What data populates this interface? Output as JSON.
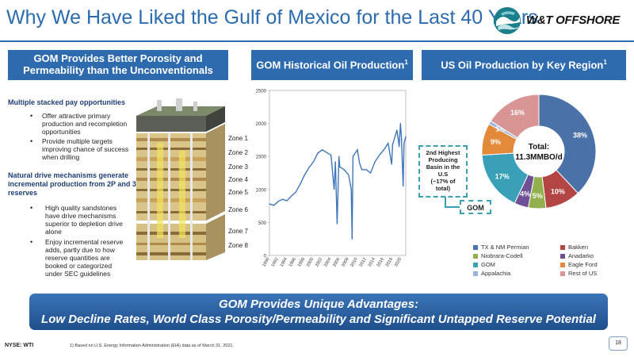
{
  "title": "Why We Have Liked the Gulf of Mexico for the Last 40 Years",
  "logo": {
    "text": "W&T OFFSHORE"
  },
  "left_panel": {
    "header": "GOM Provides Better Porosity and Permeability than the Unconventionals",
    "sections": [
      {
        "heading": "Multiple stacked pay opportunities",
        "bullets": [
          "Offer attractive primary production and recompletion opportunities",
          "Provide multiple targets improving chance of success when drilling"
        ]
      },
      {
        "heading": "Natural drive mechanisms generate incremental production from 2P and 3P reserves",
        "bullets": [
          "High quality sandstones have drive mechanisms superior to depletion drive alone",
          "Enjoy incremental reserve adds, partly due to how reserve quantities are booked or categorized under SEC guidelines"
        ]
      }
    ],
    "zones": [
      "Zone 1",
      "Zone 2",
      "Zone 3",
      "Zone 4",
      "Zone 5",
      "Zone 6",
      "Zone 7",
      "Zone 8"
    ]
  },
  "middle_panel": {
    "header": "GOM Historical Oil Production",
    "header_sup": "1"
  },
  "right_panel": {
    "header": "US Oil Production by Key Region",
    "header_sup": "1",
    "center_label_1": "Total:",
    "center_label_2": "11.3MMBO/d",
    "callout": [
      "2nd Highest",
      "Producing",
      "Basin in the",
      "U.S",
      "(~17% of",
      "total)"
    ],
    "callout_label": "GOM"
  },
  "chart_data": [
    {
      "type": "line",
      "title": "GOM Historical Oil Production",
      "xlabel": "",
      "ylabel": "",
      "ylim": [
        0,
        2500
      ],
      "yticks": [
        0,
        500,
        1000,
        1500,
        2000,
        2500
      ],
      "xticks": [
        "1990",
        "1992",
        "1994",
        "1996",
        "1998",
        "2000",
        "2002",
        "2004",
        "2006",
        "2008",
        "2010",
        "2012",
        "2014",
        "2016",
        "2018",
        "2020"
      ],
      "x": [
        1990,
        1991,
        1992,
        1993,
        1994,
        1995,
        1996,
        1997,
        1998,
        1999,
        2000,
        2001,
        2002,
        2003,
        2004,
        2004.7,
        2005,
        2005.4,
        2005.8,
        2006,
        2007,
        2008,
        2008.6,
        2008.8,
        2009,
        2010,
        2010.5,
        2011,
        2012,
        2013,
        2014,
        2015,
        2016,
        2017,
        2017.8,
        2018,
        2019,
        2019.5,
        2019.8,
        2020,
        2020.4,
        2020.6,
        2021
      ],
      "values": [
        780,
        760,
        820,
        850,
        830,
        900,
        960,
        1080,
        1220,
        1330,
        1420,
        1550,
        1600,
        1560,
        1520,
        1000,
        1420,
        480,
        1500,
        1340,
        1300,
        1220,
        1000,
        250,
        1500,
        1600,
        1400,
        1300,
        1300,
        1250,
        1420,
        1520,
        1600,
        1700,
        1380,
        1680,
        1900,
        1650,
        2000,
        1800,
        1050,
        1700,
        1800
      ],
      "grid": false
    },
    {
      "type": "pie",
      "title": "US Oil Production by Key Region",
      "categories": [
        "TX & NM Permian",
        "Bakken",
        "Niobrara-Codell",
        "Anadarko",
        "GOM",
        "Eagle Ford",
        "Appalachia",
        "Rest of US"
      ],
      "values": [
        38,
        10,
        5,
        4,
        17,
        9,
        1,
        16
      ],
      "labels": [
        "38%",
        "10%",
        "5%",
        "4%",
        "17%",
        "9%",
        "1%",
        "16%"
      ],
      "colors": [
        "#4a72a8",
        "#b34545",
        "#92b04e",
        "#6f4f96",
        "#3aa0b8",
        "#e3893a",
        "#9db2df",
        "#d99494"
      ],
      "legend": "bottom"
    }
  ],
  "banner": {
    "line1": "GOM Provides Unique Advantages:",
    "line2": "Low Decline Rates, World Class Porosity/Permeability and Significant Untapped Reserve Potential"
  },
  "footer": {
    "ticker": "NYSE: WTI",
    "footnote": "1)      Based on U.S. Energy Information Administration (EIA) data as of March 31, 2021.",
    "page": "18"
  }
}
